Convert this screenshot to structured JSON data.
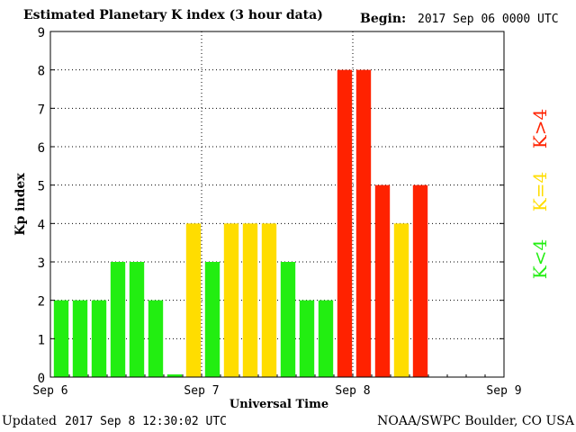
{
  "header": {
    "title": "Estimated Planetary K index (3 hour data)",
    "begin_label": "Begin:",
    "begin_value": "2017 Sep 06 0000 UTC"
  },
  "footer": {
    "updated_label": "Updated",
    "updated_value": "2017 Sep  8 12:30:02 UTC",
    "credit": "NOAA/SWPC Boulder, CO USA"
  },
  "chart_data": {
    "type": "bar",
    "title": "Estimated Planetary K index (3 hour data)",
    "xlabel": "Universal Time",
    "ylabel": "Kp index",
    "ylim": [
      0,
      9
    ],
    "yticks": [
      "0",
      "1",
      "2",
      "3",
      "4",
      "5",
      "6",
      "7",
      "8",
      "9"
    ],
    "xticks": [
      "Sep 6",
      "Sep 7",
      "Sep 8",
      "Sep 9"
    ],
    "grid": true,
    "slots_per_axis": 24,
    "values": [
      2,
      2,
      2,
      3,
      3,
      2,
      0.07,
      4,
      3,
      4,
      4,
      4,
      3,
      2,
      2,
      8,
      8,
      5,
      4,
      5
    ],
    "colors": {
      "low": "#22ee11",
      "mid": "#ffdd00",
      "high": "#ff2200"
    },
    "legend": [
      {
        "label": "K<4",
        "color": "#22ee11"
      },
      {
        "label": "K=4",
        "color": "#ffdd00"
      },
      {
        "label": "K>4",
        "color": "#ff2200"
      }
    ]
  }
}
